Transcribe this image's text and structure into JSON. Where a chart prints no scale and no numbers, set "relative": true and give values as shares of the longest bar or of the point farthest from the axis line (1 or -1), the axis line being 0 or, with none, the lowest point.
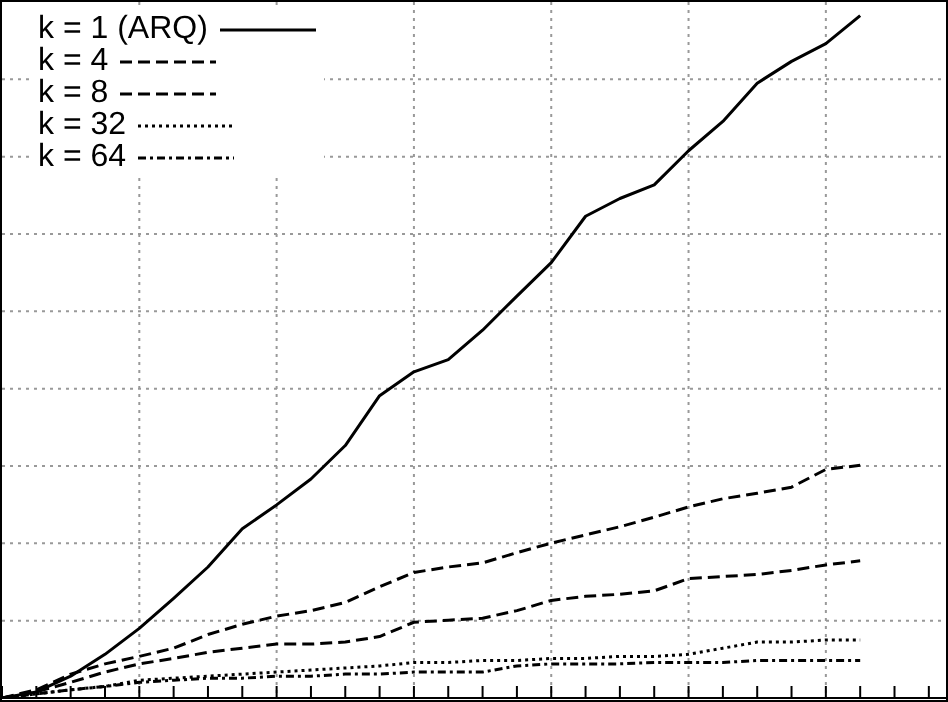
{
  "chart_data": {
    "type": "line",
    "relative": true,
    "categories": [
      null,
      null,
      null,
      null,
      null,
      null,
      null,
      null,
      null,
      null,
      null,
      null,
      null,
      null,
      null,
      null,
      null,
      null,
      null,
      null,
      null,
      null,
      null,
      null,
      null,
      null,
      null,
      null
    ],
    "series": [
      {
        "name": "k = 1 (ARQ)",
        "color": "#000000",
        "line_style": "solid",
        "values": [
          0,
          0.009,
          0.032,
          0.064,
          0.102,
          0.146,
          0.192,
          0.248,
          0.283,
          0.321,
          0.37,
          0.443,
          0.478,
          0.496,
          0.539,
          0.589,
          0.638,
          0.706,
          0.732,
          0.752,
          0.802,
          0.845,
          0.901,
          0.933,
          0.959,
          1,
          null,
          null
        ]
      },
      {
        "name": "k = 4",
        "color": "#000000",
        "line_style": "dashed",
        "values": [
          0,
          0.012,
          0.035,
          0.05,
          0.061,
          0.073,
          0.093,
          0.108,
          0.12,
          0.128,
          0.14,
          0.163,
          0.184,
          0.192,
          0.198,
          0.213,
          0.227,
          0.239,
          0.251,
          0.265,
          0.28,
          0.292,
          0.3,
          0.309,
          0.335,
          0.341,
          null,
          null
        ]
      },
      {
        "name": "k = 8",
        "color": "#000000",
        "line_style": "dashed",
        "values": [
          0,
          0.009,
          0.023,
          0.038,
          0.05,
          0.058,
          0.067,
          0.073,
          0.079,
          0.079,
          0.082,
          0.09,
          0.111,
          0.114,
          0.117,
          0.128,
          0.143,
          0.149,
          0.152,
          0.157,
          0.175,
          0.178,
          0.181,
          0.187,
          0.195,
          0.201,
          null,
          null
        ]
      },
      {
        "name": "k = 32",
        "color": "#000000",
        "line_style": "dotted",
        "values": [
          0,
          0.006,
          0.012,
          0.017,
          0.026,
          0.029,
          0.032,
          0.035,
          0.038,
          0.041,
          0.044,
          0.047,
          0.052,
          0.052,
          0.055,
          0.055,
          0.058,
          0.058,
          0.061,
          0.061,
          0.064,
          0.073,
          0.082,
          0.082,
          0.085,
          0.085,
          null,
          null
        ]
      },
      {
        "name": "k = 64",
        "color": "#000000",
        "line_style": "dashdot",
        "values": [
          0,
          0.006,
          0.012,
          0.017,
          0.023,
          0.026,
          0.029,
          0.029,
          0.032,
          0.032,
          0.035,
          0.035,
          0.038,
          0.038,
          0.038,
          0.047,
          0.05,
          0.05,
          0.05,
          0.052,
          0.052,
          0.052,
          0.055,
          0.055,
          0.055,
          0.055,
          null,
          null
        ]
      }
    ],
    "grid": true,
    "legend": "top left",
    "marker": "none"
  }
}
